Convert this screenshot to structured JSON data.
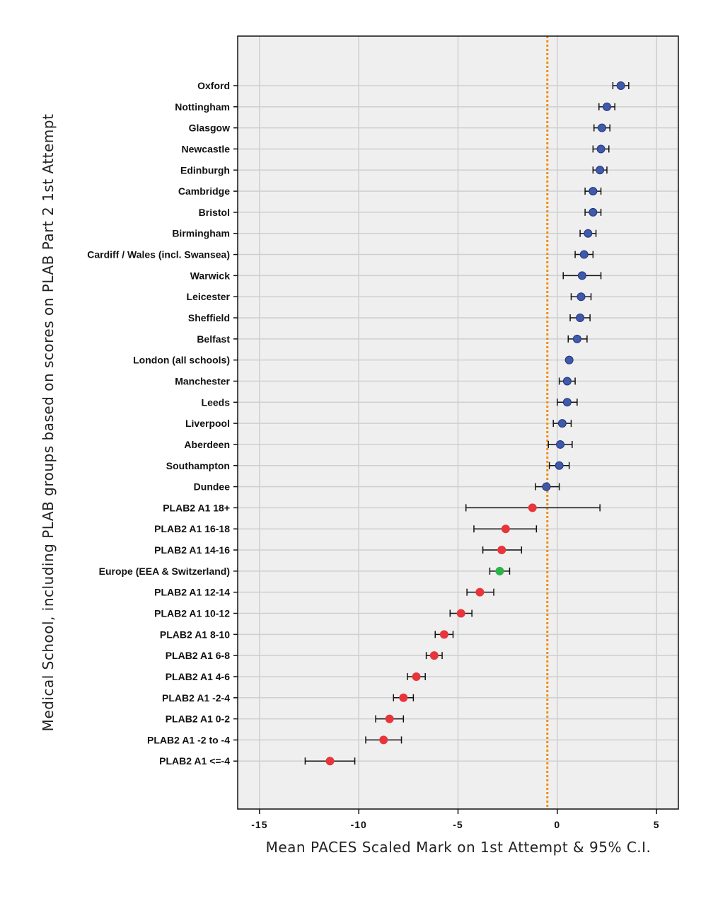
{
  "chart_data": {
    "type": "scatter",
    "xlabel": "Mean PACES Scaled Mark on 1st Attempt & 95% C.I.",
    "ylabel": "Medical School, including PLAB groups based on scores on PLAB Part 2 1st Attempt",
    "xlim": [
      -16.1,
      6.1
    ],
    "xticks": [
      -15,
      -10,
      -5,
      0,
      5
    ],
    "xtick_labels": [
      "-15",
      "-10",
      "-5",
      "0",
      "5"
    ],
    "grid": true,
    "reference_line": {
      "x": -0.5,
      "style": "dotted",
      "color": "#f28c00"
    },
    "colors": {
      "uk": "#3f59ab",
      "plab": "#e8353b",
      "eea": "#2cb34a",
      "plot_bg": "#efefef",
      "grid": "#cfcfcf"
    },
    "points": [
      {
        "label": "Oxford",
        "mean": 3.2,
        "lo": 2.8,
        "hi": 3.6,
        "group": "uk"
      },
      {
        "label": "Nottingham",
        "mean": 2.5,
        "lo": 2.1,
        "hi": 2.9,
        "group": "uk"
      },
      {
        "label": "Glasgow",
        "mean": 2.25,
        "lo": 1.85,
        "hi": 2.65,
        "group": "uk"
      },
      {
        "label": "Newcastle",
        "mean": 2.2,
        "lo": 1.8,
        "hi": 2.6,
        "group": "uk"
      },
      {
        "label": "Edinburgh",
        "mean": 2.15,
        "lo": 1.8,
        "hi": 2.5,
        "group": "uk"
      },
      {
        "label": "Cambridge",
        "mean": 1.8,
        "lo": 1.4,
        "hi": 2.2,
        "group": "uk"
      },
      {
        "label": "Bristol",
        "mean": 1.8,
        "lo": 1.4,
        "hi": 2.2,
        "group": "uk"
      },
      {
        "label": "Birmingham",
        "mean": 1.55,
        "lo": 1.15,
        "hi": 1.95,
        "group": "uk"
      },
      {
        "label": "Cardiff / Wales (incl. Swansea)",
        "mean": 1.35,
        "lo": 0.9,
        "hi": 1.8,
        "group": "uk"
      },
      {
        "label": "Warwick",
        "mean": 1.25,
        "lo": 0.3,
        "hi": 2.2,
        "group": "uk"
      },
      {
        "label": "Leicester",
        "mean": 1.2,
        "lo": 0.7,
        "hi": 1.7,
        "group": "uk"
      },
      {
        "label": "Sheffield",
        "mean": 1.15,
        "lo": 0.65,
        "hi": 1.65,
        "group": "uk"
      },
      {
        "label": "Belfast",
        "mean": 1.0,
        "lo": 0.55,
        "hi": 1.5,
        "group": "uk"
      },
      {
        "label": "London (all schools)",
        "mean": 0.6,
        "lo": 0.5,
        "hi": 0.7,
        "group": "uk"
      },
      {
        "label": "Manchester",
        "mean": 0.5,
        "lo": 0.1,
        "hi": 0.9,
        "group": "uk"
      },
      {
        "label": "Leeds",
        "mean": 0.5,
        "lo": 0.0,
        "hi": 1.0,
        "group": "uk"
      },
      {
        "label": "Liverpool",
        "mean": 0.25,
        "lo": -0.2,
        "hi": 0.7,
        "group": "uk"
      },
      {
        "label": "Aberdeen",
        "mean": 0.15,
        "lo": -0.45,
        "hi": 0.75,
        "group": "uk"
      },
      {
        "label": "Southampton",
        "mean": 0.1,
        "lo": -0.4,
        "hi": 0.6,
        "group": "uk"
      },
      {
        "label": "Dundee",
        "mean": -0.55,
        "lo": -1.1,
        "hi": 0.1,
        "group": "uk"
      },
      {
        "label": "PLAB2 A1 18+",
        "mean": -1.25,
        "lo": -4.6,
        "hi": 2.15,
        "group": "plab"
      },
      {
        "label": "PLAB2 A1 16-18",
        "mean": -2.6,
        "lo": -4.2,
        "hi": -1.05,
        "group": "plab"
      },
      {
        "label": "PLAB2 A1  14-16",
        "mean": -2.8,
        "lo": -3.75,
        "hi": -1.8,
        "group": "plab"
      },
      {
        "label": "Europe (EEA & Switzerland)",
        "mean": -2.9,
        "lo": -3.4,
        "hi": -2.4,
        "group": "eea"
      },
      {
        "label": "PLAB2 A1 12-14",
        "mean": -3.9,
        "lo": -4.55,
        "hi": -3.2,
        "group": "plab"
      },
      {
        "label": "PLAB2 A1 10-12",
        "mean": -4.85,
        "lo": -5.4,
        "hi": -4.3,
        "group": "plab"
      },
      {
        "label": "PLAB2 A1 8-10",
        "mean": -5.7,
        "lo": -6.15,
        "hi": -5.25,
        "group": "plab"
      },
      {
        "label": "PLAB2 A1  6-8",
        "mean": -6.2,
        "lo": -6.6,
        "hi": -5.8,
        "group": "plab"
      },
      {
        "label": "PLAB2 A1 4-6",
        "mean": -7.1,
        "lo": -7.55,
        "hi": -6.65,
        "group": "plab"
      },
      {
        "label": "PLAB2 A1 -2-4",
        "mean": -7.75,
        "lo": -8.25,
        "hi": -7.25,
        "group": "plab"
      },
      {
        "label": "PLAB2 A1 0-2",
        "mean": -8.45,
        "lo": -9.15,
        "hi": -7.75,
        "group": "plab"
      },
      {
        "label": "PLAB2 A1 -2 to -4",
        "mean": -8.75,
        "lo": -9.65,
        "hi": -7.85,
        "group": "plab"
      },
      {
        "label": "PLAB2 A1   <=-4",
        "mean": -11.45,
        "lo": -12.7,
        "hi": -10.2,
        "group": "plab"
      }
    ]
  }
}
